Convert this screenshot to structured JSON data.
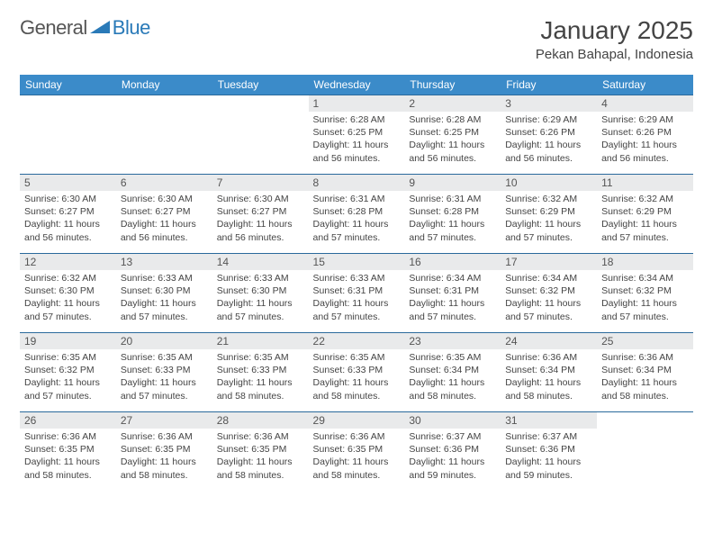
{
  "logo": {
    "general": "General",
    "blue": "Blue"
  },
  "title": "January 2025",
  "location": "Pekan Bahapal, Indonesia",
  "day_headers": [
    "Sunday",
    "Monday",
    "Tuesday",
    "Wednesday",
    "Thursday",
    "Friday",
    "Saturday"
  ],
  "colors": {
    "header_bg": "#3b8bc9",
    "header_text": "#ffffff",
    "row_divider": "#2a6a9c",
    "daynum_bg": "#e9eaeb",
    "logo_blue": "#2a7ab8"
  },
  "typography": {
    "title_fontsize": 28,
    "location_fontsize": 15,
    "header_fontsize": 12,
    "body_fontsize": 10.5
  },
  "layout": {
    "columns": 7,
    "rows": 5
  },
  "weeks": [
    [
      null,
      null,
      null,
      {
        "n": "1",
        "sr": "6:28 AM",
        "ss": "6:25 PM",
        "dl": "11 hours and 56 minutes."
      },
      {
        "n": "2",
        "sr": "6:28 AM",
        "ss": "6:25 PM",
        "dl": "11 hours and 56 minutes."
      },
      {
        "n": "3",
        "sr": "6:29 AM",
        "ss": "6:26 PM",
        "dl": "11 hours and 56 minutes."
      },
      {
        "n": "4",
        "sr": "6:29 AM",
        "ss": "6:26 PM",
        "dl": "11 hours and 56 minutes."
      }
    ],
    [
      {
        "n": "5",
        "sr": "6:30 AM",
        "ss": "6:27 PM",
        "dl": "11 hours and 56 minutes."
      },
      {
        "n": "6",
        "sr": "6:30 AM",
        "ss": "6:27 PM",
        "dl": "11 hours and 56 minutes."
      },
      {
        "n": "7",
        "sr": "6:30 AM",
        "ss": "6:27 PM",
        "dl": "11 hours and 56 minutes."
      },
      {
        "n": "8",
        "sr": "6:31 AM",
        "ss": "6:28 PM",
        "dl": "11 hours and 57 minutes."
      },
      {
        "n": "9",
        "sr": "6:31 AM",
        "ss": "6:28 PM",
        "dl": "11 hours and 57 minutes."
      },
      {
        "n": "10",
        "sr": "6:32 AM",
        "ss": "6:29 PM",
        "dl": "11 hours and 57 minutes."
      },
      {
        "n": "11",
        "sr": "6:32 AM",
        "ss": "6:29 PM",
        "dl": "11 hours and 57 minutes."
      }
    ],
    [
      {
        "n": "12",
        "sr": "6:32 AM",
        "ss": "6:30 PM",
        "dl": "11 hours and 57 minutes."
      },
      {
        "n": "13",
        "sr": "6:33 AM",
        "ss": "6:30 PM",
        "dl": "11 hours and 57 minutes."
      },
      {
        "n": "14",
        "sr": "6:33 AM",
        "ss": "6:30 PM",
        "dl": "11 hours and 57 minutes."
      },
      {
        "n": "15",
        "sr": "6:33 AM",
        "ss": "6:31 PM",
        "dl": "11 hours and 57 minutes."
      },
      {
        "n": "16",
        "sr": "6:34 AM",
        "ss": "6:31 PM",
        "dl": "11 hours and 57 minutes."
      },
      {
        "n": "17",
        "sr": "6:34 AM",
        "ss": "6:32 PM",
        "dl": "11 hours and 57 minutes."
      },
      {
        "n": "18",
        "sr": "6:34 AM",
        "ss": "6:32 PM",
        "dl": "11 hours and 57 minutes."
      }
    ],
    [
      {
        "n": "19",
        "sr": "6:35 AM",
        "ss": "6:32 PM",
        "dl": "11 hours and 57 minutes."
      },
      {
        "n": "20",
        "sr": "6:35 AM",
        "ss": "6:33 PM",
        "dl": "11 hours and 57 minutes."
      },
      {
        "n": "21",
        "sr": "6:35 AM",
        "ss": "6:33 PM",
        "dl": "11 hours and 58 minutes."
      },
      {
        "n": "22",
        "sr": "6:35 AM",
        "ss": "6:33 PM",
        "dl": "11 hours and 58 minutes."
      },
      {
        "n": "23",
        "sr": "6:35 AM",
        "ss": "6:34 PM",
        "dl": "11 hours and 58 minutes."
      },
      {
        "n": "24",
        "sr": "6:36 AM",
        "ss": "6:34 PM",
        "dl": "11 hours and 58 minutes."
      },
      {
        "n": "25",
        "sr": "6:36 AM",
        "ss": "6:34 PM",
        "dl": "11 hours and 58 minutes."
      }
    ],
    [
      {
        "n": "26",
        "sr": "6:36 AM",
        "ss": "6:35 PM",
        "dl": "11 hours and 58 minutes."
      },
      {
        "n": "27",
        "sr": "6:36 AM",
        "ss": "6:35 PM",
        "dl": "11 hours and 58 minutes."
      },
      {
        "n": "28",
        "sr": "6:36 AM",
        "ss": "6:35 PM",
        "dl": "11 hours and 58 minutes."
      },
      {
        "n": "29",
        "sr": "6:36 AM",
        "ss": "6:35 PM",
        "dl": "11 hours and 58 minutes."
      },
      {
        "n": "30",
        "sr": "6:37 AM",
        "ss": "6:36 PM",
        "dl": "11 hours and 59 minutes."
      },
      {
        "n": "31",
        "sr": "6:37 AM",
        "ss": "6:36 PM",
        "dl": "11 hours and 59 minutes."
      },
      null
    ]
  ],
  "labels": {
    "sunrise": "Sunrise:",
    "sunset": "Sunset:",
    "daylight": "Daylight:"
  }
}
